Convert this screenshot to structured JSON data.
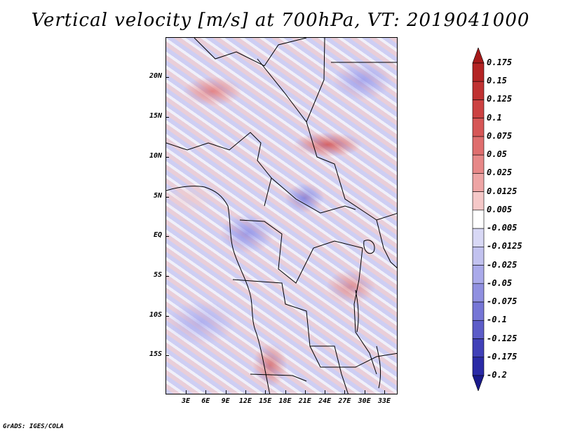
{
  "title": "Vertical velocity [m/s] at 700hPa, VT: 2019041000",
  "credit": "GrADS: IGES/COLA",
  "map": {
    "lat_ticks": [
      "20N",
      "15N",
      "10N",
      "5N",
      "EQ",
      "5S",
      "10S",
      "15S"
    ],
    "lon_ticks": [
      "3E",
      "6E",
      "9E",
      "12E",
      "15E",
      "18E",
      "21E",
      "24E",
      "27E",
      "30E",
      "33E"
    ],
    "field": "vertical velocity",
    "level": "700hPa"
  },
  "colorbar": {
    "labels": [
      "0.175",
      "0.15",
      "0.125",
      "0.1",
      "0.075",
      "0.05",
      "0.025",
      "0.0125",
      "0.005",
      "-0.005",
      "-0.0125",
      "-0.025",
      "-0.05",
      "-0.075",
      "-0.1",
      "-0.125",
      "-0.175",
      "-0.2"
    ],
    "colors": [
      "#a61a1a",
      "#b42424",
      "#c03232",
      "#cc4242",
      "#d65656",
      "#df6e6e",
      "#e78888",
      "#eea5a5",
      "#f5c8c8",
      "#ffffff",
      "#d8d8f5",
      "#c2c2ef",
      "#aaaaea",
      "#9090e0",
      "#7676d6",
      "#5c5cc8",
      "#4040b8",
      "#2a2aa6",
      "#1a1a8c"
    ]
  }
}
